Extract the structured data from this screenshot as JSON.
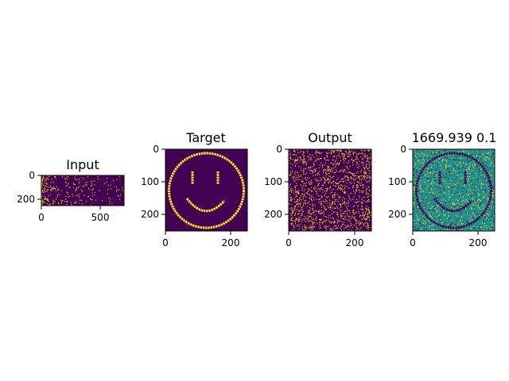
{
  "chart_data": [
    {
      "type": "heatmap",
      "title": "Input",
      "xlim": [
        0,
        700
      ],
      "ylim": [
        0,
        256
      ],
      "xticks": [
        "0",
        "500"
      ],
      "yticks": [
        "0",
        "200"
      ],
      "colormap": "viridis",
      "content": "sparse random binary spikes, denser on the left"
    },
    {
      "type": "heatmap",
      "title": "Target",
      "xlim": [
        0,
        250
      ],
      "ylim": [
        0,
        250
      ],
      "xticks": [
        "0",
        "200"
      ],
      "yticks": [
        "0",
        "100",
        "200"
      ],
      "colormap": "viridis",
      "content": "smiley face"
    },
    {
      "type": "heatmap",
      "title": "Output",
      "xlim": [
        0,
        250
      ],
      "ylim": [
        0,
        250
      ],
      "xticks": [
        "0",
        "200"
      ],
      "yticks": [
        "0",
        "100",
        "200"
      ],
      "colormap": "viridis",
      "content": "random binary noise"
    },
    {
      "type": "heatmap",
      "title": "1669.939 0.1",
      "xlim": [
        0,
        250
      ],
      "ylim": [
        0,
        250
      ],
      "xticks": [
        "0",
        "200"
      ],
      "yticks": [
        "0",
        "100",
        "200"
      ],
      "colormap": "viridis",
      "content": "difference map showing smiley outline"
    }
  ],
  "colors": {
    "viridis_low": "#440154",
    "viridis_mid": "#21918c",
    "viridis_high": "#fde725"
  }
}
